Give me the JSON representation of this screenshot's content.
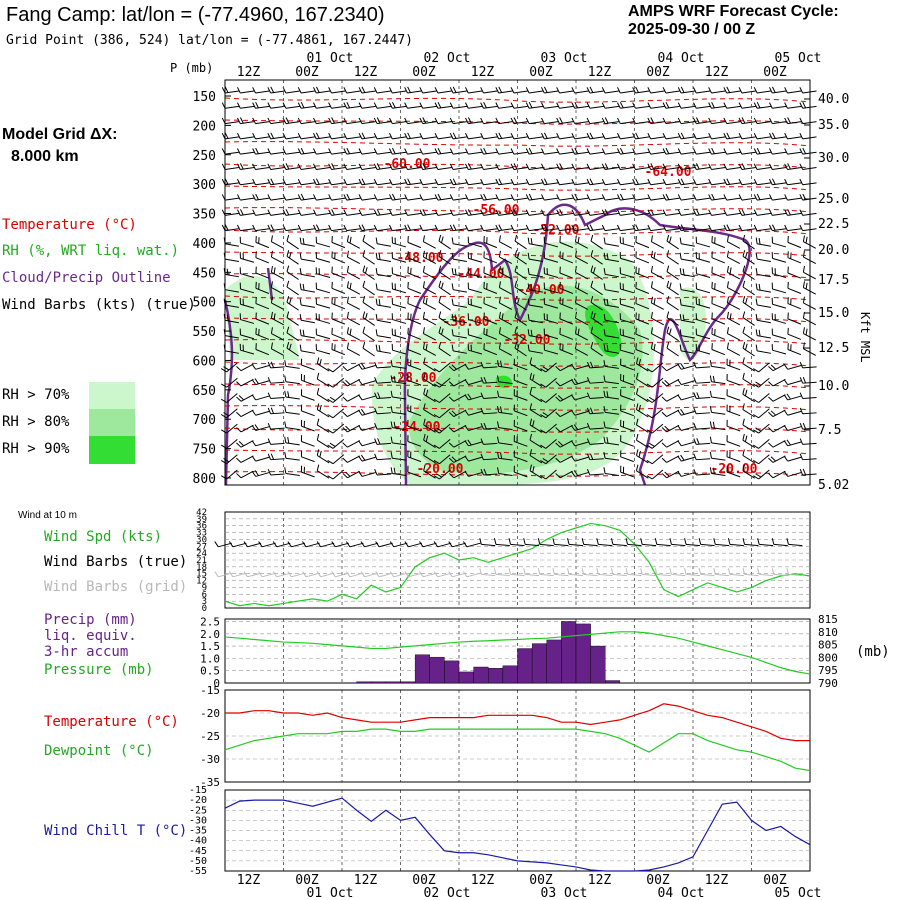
{
  "header": {
    "title": "Fang Camp:  lat/lon = (-77.4960, 167.2340)",
    "grid_point": "Grid Point (386, 524) lat/lon = (-77.4861, 167.2447)",
    "cycle_line1": "AMPS WRF Forecast Cycle:",
    "cycle_line2": "2025-09-30 / 00  Z"
  },
  "left_labels": {
    "model_grid_1": "Model Grid ΔX:",
    "model_grid_2": "8.000 km",
    "temperature": "Temperature (°C)",
    "rh": "RH (%, WRT liq. wat.)",
    "cloud": "Cloud/Precip Outline",
    "wind_barbs": "Wind Barbs (kts) (true)",
    "rh70": "RH > 70%",
    "rh80": "RH > 80%",
    "rh90": "RH > 90%",
    "wind_at_10m": "Wind at 10 m",
    "wind_spd": "Wind Spd (kts)",
    "wind_barbs_true": "Wind Barbs (true)",
    "wind_barbs_grid": "Wind Barbs (grid)",
    "precip_1": "Precip (mm)",
    "precip_2": "liq. equiv.",
    "precip_3": "3-hr accum",
    "pressure": "Pressure (mb)",
    "temp2": "Temperature (°C)",
    "dewpoint": "Dewpoint (°C)",
    "windchill": "Wind Chill T (°C)",
    "p_axis": "P (mb)",
    "kft": "Kft MSL",
    "mb_unit": "(mb)"
  },
  "colors": {
    "rh70": "#ccf7cc",
    "rh80": "#9ee89e",
    "rh90": "#33dd33",
    "temp": "#dd0000",
    "dew": "#22cc22",
    "precip": "#662288",
    "cloud": "#6a2a8a",
    "windchill": "#1a1aa8"
  },
  "chart_data": {
    "type": "meteogram",
    "x_hours": [
      0,
      3,
      6,
      9,
      12,
      15,
      18,
      21,
      24,
      27,
      30,
      33,
      36,
      39,
      42,
      45,
      48,
      51,
      54,
      57,
      60,
      63,
      66,
      69,
      72,
      75,
      78,
      81,
      84,
      87,
      90,
      93,
      96,
      99,
      102,
      105,
      108,
      111,
      114,
      117,
      120
    ],
    "time_ticks": [
      "12Z",
      "00Z",
      "12Z",
      "00Z",
      "12Z",
      "00Z",
      "12Z",
      "00Z",
      "12Z",
      "00Z"
    ],
    "date_ticks": [
      "01 Oct",
      "02 Oct",
      "03 Oct",
      "04 Oct",
      "05 Oct"
    ],
    "cross_section": {
      "pressure_ticks": [
        150,
        200,
        250,
        300,
        350,
        400,
        450,
        500,
        550,
        600,
        650,
        700,
        750,
        800
      ],
      "height_ticks": [
        "40.0",
        "35.0",
        "30.0",
        "25.0",
        "22.5",
        "20.0",
        "17.5",
        "15.0",
        "12.5",
        "10.0",
        "7.5",
        "5.02"
      ],
      "temp_labels": [
        "-60.00",
        "-64.00",
        "-56.00",
        "-52.00",
        "-48.00",
        "-44.00",
        "-40.00",
        "-36.00",
        "-32.00",
        "-28.00",
        "-24.00",
        "-20.00",
        "-20.00"
      ]
    },
    "wind_speed": {
      "yticks": [
        "42",
        "39",
        "36",
        "33",
        "30",
        "27",
        "24",
        "21",
        "18",
        "15",
        "12",
        "9",
        "6",
        "3",
        "0"
      ],
      "values": [
        3,
        1,
        2,
        1,
        2,
        3,
        4,
        3,
        6,
        4,
        10,
        7,
        9,
        18,
        22,
        24,
        21,
        22,
        20,
        22,
        24,
        26,
        30,
        33,
        35,
        37,
        36,
        34,
        28,
        20,
        8,
        5,
        8,
        11,
        9,
        7,
        9,
        12,
        14,
        15,
        14
      ]
    },
    "precip": {
      "yticks": [
        "2.5",
        "2.0",
        "1.5",
        "1.0",
        "0.5",
        "0"
      ],
      "values": [
        0,
        0,
        0,
        0,
        0,
        0,
        0,
        0,
        0,
        0.05,
        0.05,
        0.05,
        0.05,
        1.15,
        1.05,
        0.9,
        0.45,
        0.65,
        0.6,
        0.7,
        1.4,
        1.6,
        1.75,
        2.5,
        2.4,
        1.5,
        0.1,
        0,
        0,
        0,
        0,
        0,
        0,
        0,
        0,
        0,
        0,
        0,
        0,
        0,
        0
      ]
    },
    "pressure": {
      "yticks": [
        "815",
        "810",
        "805",
        "800",
        "795",
        "790"
      ],
      "values": [
        808,
        807.5,
        807,
        806.5,
        806,
        805.8,
        805.5,
        805,
        804.5,
        804,
        803.5,
        803.5,
        804,
        804.5,
        805,
        805.5,
        806,
        806.3,
        806.5,
        806.8,
        807,
        807.3,
        807.5,
        808,
        808.5,
        809,
        809.5,
        810,
        810,
        809.5,
        808.5,
        807.5,
        806,
        804.5,
        803,
        801.5,
        800,
        798,
        796,
        794.5,
        793.5
      ]
    },
    "temperature": {
      "yticks": [
        "-15",
        "-20",
        "-25",
        "-30",
        "-35"
      ],
      "temp": [
        -20,
        -20,
        -19.5,
        -19.5,
        -20,
        -20,
        -20.5,
        -20,
        -21,
        -21.5,
        -22,
        -22,
        -22,
        -21.5,
        -21,
        -21,
        -21,
        -21,
        -20.5,
        -20.5,
        -20.5,
        -20.5,
        -21,
        -22,
        -22,
        -22.5,
        -22,
        -21.5,
        -20.5,
        -19.5,
        -18,
        -18.5,
        -19.5,
        -20.5,
        -21,
        -22,
        -23,
        -24,
        -25.5,
        -26,
        -26
      ],
      "dew": [
        -28,
        -27,
        -26,
        -25.5,
        -25,
        -24.5,
        -24.5,
        -24.5,
        -24,
        -24,
        -23.5,
        -23.5,
        -24,
        -24,
        -23.5,
        -23.5,
        -23.5,
        -23.5,
        -23.5,
        -23.5,
        -23.5,
        -23.5,
        -23.5,
        -23.5,
        -23.5,
        -24,
        -24.5,
        -25.5,
        -27,
        -28.5,
        -26.5,
        -24.5,
        -24.5,
        -26,
        -27,
        -28,
        -28.5,
        -29.5,
        -30.5,
        -32,
        -32.5
      ]
    },
    "wind_chill": {
      "yticks": [
        "-15",
        "-20",
        "-25",
        "-30",
        "-35",
        "-40",
        "-45",
        "-50",
        "-55"
      ],
      "values": [
        -24,
        -20.5,
        -20,
        -20,
        -20,
        -21.5,
        -23,
        -21,
        -19,
        -25,
        -30.5,
        -25,
        -30,
        -28.5,
        -37,
        -45,
        -46,
        -46,
        -47,
        -48.5,
        -50,
        -50.5,
        -51,
        -52,
        -53,
        -54.5,
        -55,
        -55,
        -55,
        -54.5,
        -53,
        -51,
        -48,
        -35,
        -22,
        -21,
        -30,
        -35,
        -33,
        -38,
        -42
      ]
    }
  }
}
